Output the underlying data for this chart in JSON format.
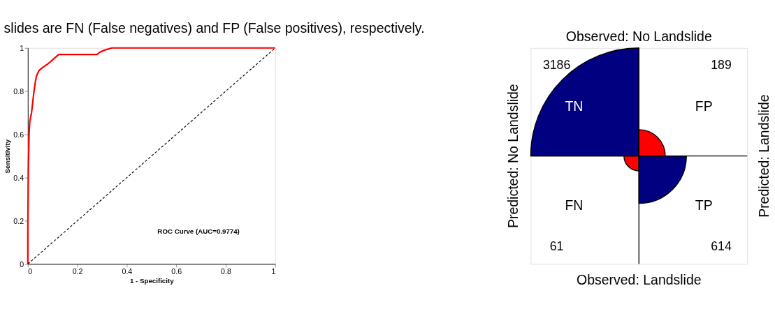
{
  "chart_data": [
    {
      "type": "line",
      "title": "slides are FN (False negatives) and FP (False positives), respectively.",
      "xlabel": "1 - Specificity",
      "ylabel": "Sensitivity",
      "series": [
        {
          "color": "#ff0000",
          "x": [
            0,
            0,
            0.002,
            0.005,
            0.008,
            0.015,
            0.02,
            0.025,
            0.03,
            0.035,
            0.045,
            0.06,
            0.08,
            0.095,
            0.11,
            0.125,
            0.2,
            0.28,
            0.29,
            0.31,
            0.34,
            0.6,
            1
          ],
          "values": [
            0,
            0.15,
            0.43,
            0.6,
            0.66,
            0.7,
            0.75,
            0.8,
            0.84,
            0.87,
            0.895,
            0.91,
            0.925,
            0.94,
            0.955,
            0.97,
            0.97,
            0.97,
            0.98,
            0.99,
            1,
            1,
            1
          ]
        },
        {
          "color": "#000000",
          "line_style": "dashed",
          "x": [
            0,
            1
          ],
          "values": [
            0,
            1
          ]
        }
      ],
      "xlim": [
        0,
        1
      ],
      "ylim": [
        0,
        1
      ],
      "xticks": [
        0,
        0.2,
        0.4,
        0.6,
        0.8,
        1
      ],
      "yticks": [
        0,
        0.2,
        0.4,
        0.6,
        0.8,
        1
      ],
      "grid": false,
      "annotations": [
        "ROC Curve (AUC=0.9774)"
      ]
    },
    {
      "type": "other",
      "title": "Observed: No Landslide",
      "xlabel": "Observed: Landslide",
      "ylabel": "Predicted: No Landslide",
      "y2label": "Predicted: Landslide",
      "categories": [
        "TN",
        "FP",
        "FN",
        "TP"
      ],
      "values": [
        3186,
        189,
        61,
        614
      ],
      "data_labels": true,
      "colors": [
        "#000080",
        "#ff0000",
        "#ff0000",
        "#000080"
      ]
    }
  ]
}
